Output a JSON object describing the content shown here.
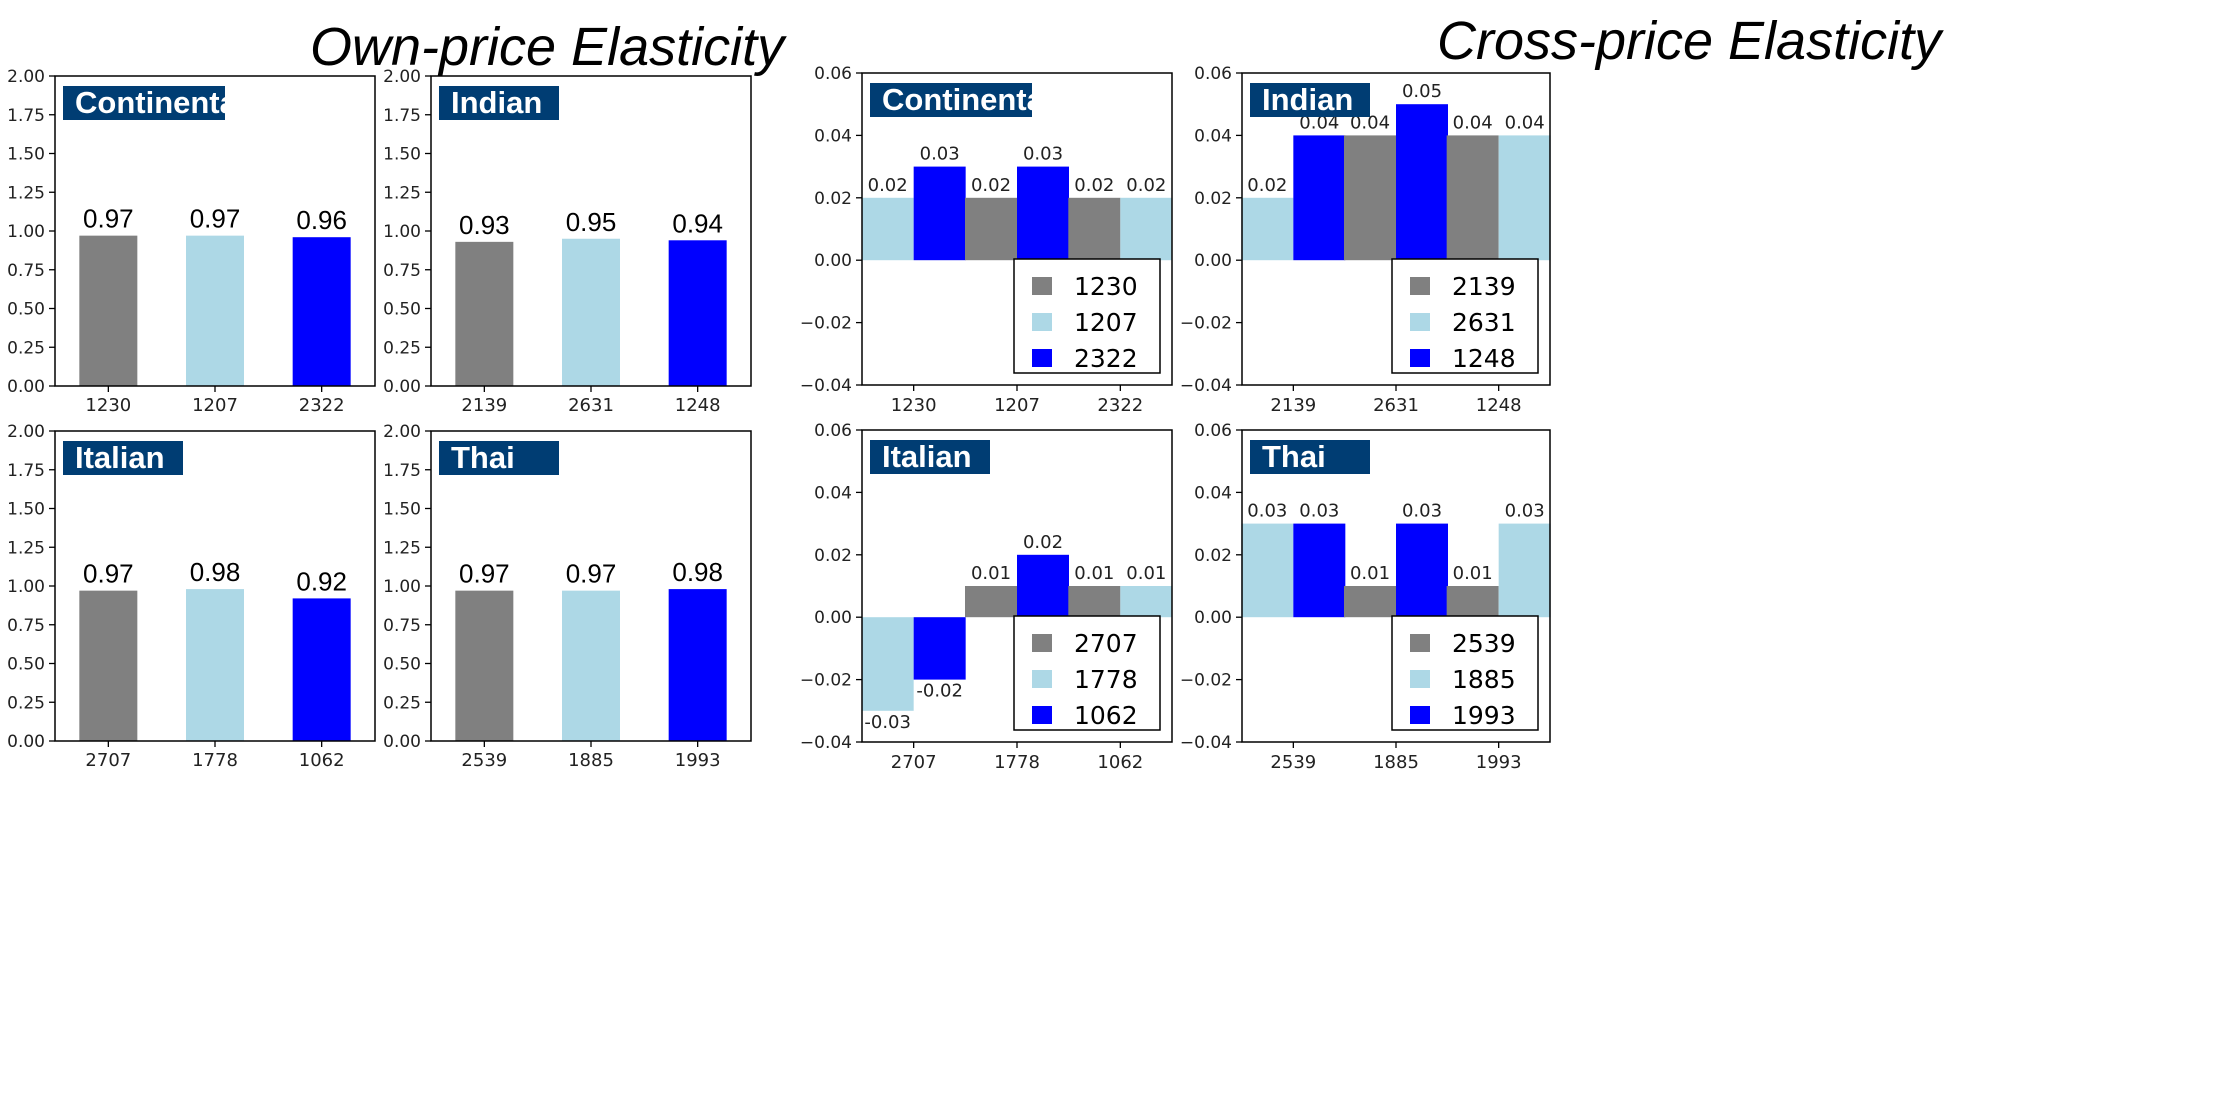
{
  "titles": {
    "own_price": "Own-price Elasticity",
    "cross_price": "Cross-price Elasticity"
  },
  "colors": {
    "gray": "#808080",
    "light_blue": "#add8e6",
    "blue": "#0000ff",
    "badge": "#003d73",
    "axis": "#000000"
  },
  "chart_data": [
    {
      "group": "own-price",
      "cuisine": "Continental",
      "type": "bar",
      "categories": [
        "1230",
        "1207",
        "2322"
      ],
      "values": [
        0.97,
        0.97,
        0.96
      ],
      "labels": [
        "0.97",
        "0.97",
        "0.96"
      ],
      "ylim": [
        0,
        2.0
      ],
      "yticks": [
        "0.00",
        "0.25",
        "0.50",
        "0.75",
        "1.00",
        "1.25",
        "1.50",
        "1.75",
        "2.00"
      ]
    },
    {
      "group": "own-price",
      "cuisine": "Indian",
      "type": "bar",
      "categories": [
        "2139",
        "2631",
        "1248"
      ],
      "values": [
        0.93,
        0.95,
        0.94
      ],
      "labels": [
        "0.93",
        "0.95",
        "0.94"
      ],
      "ylim": [
        0,
        2.0
      ],
      "yticks": [
        "0.00",
        "0.25",
        "0.50",
        "0.75",
        "1.00",
        "1.25",
        "1.50",
        "1.75",
        "2.00"
      ]
    },
    {
      "group": "own-price",
      "cuisine": "Italian",
      "type": "bar",
      "categories": [
        "2707",
        "1778",
        "1062"
      ],
      "values": [
        0.97,
        0.98,
        0.92
      ],
      "labels": [
        "0.97",
        "0.98",
        "0.92"
      ],
      "ylim": [
        0,
        2.0
      ],
      "yticks": [
        "0.00",
        "0.25",
        "0.50",
        "0.75",
        "1.00",
        "1.25",
        "1.50",
        "1.75",
        "2.00"
      ]
    },
    {
      "group": "own-price",
      "cuisine": "Thai",
      "type": "bar",
      "categories": [
        "2539",
        "1885",
        "1993"
      ],
      "values": [
        0.97,
        0.97,
        0.98
      ],
      "labels": [
        "0.97",
        "0.97",
        "0.98"
      ],
      "ylim": [
        0,
        2.0
      ],
      "yticks": [
        "0.00",
        "0.25",
        "0.50",
        "0.75",
        "1.00",
        "1.25",
        "1.50",
        "1.75",
        "2.00"
      ]
    },
    {
      "group": "cross-price",
      "cuisine": "Continental",
      "type": "bar",
      "categories": [
        "1230",
        "1207",
        "2322"
      ],
      "ylim": [
        -0.04,
        0.06
      ],
      "yticks": [
        "−0.04",
        "−0.02",
        "0.00",
        "0.02",
        "0.04",
        "0.06"
      ],
      "legend_position": "lower-right",
      "series": [
        {
          "name": "1230",
          "values": [
            null,
            0.02,
            0.02
          ],
          "labels": [
            "",
            "0.02",
            "0.02"
          ]
        },
        {
          "name": "1207",
          "values": [
            0.02,
            null,
            0.02
          ],
          "labels": [
            "0.02",
            "",
            "0.02"
          ]
        },
        {
          "name": "2322",
          "values": [
            0.03,
            0.03,
            null
          ],
          "labels": [
            "0.03",
            "0.03",
            ""
          ]
        }
      ]
    },
    {
      "group": "cross-price",
      "cuisine": "Indian",
      "type": "bar",
      "categories": [
        "2139",
        "2631",
        "1248"
      ],
      "ylim": [
        -0.04,
        0.06
      ],
      "yticks": [
        "−0.04",
        "−0.02",
        "0.00",
        "0.02",
        "0.04",
        "0.06"
      ],
      "legend_position": "lower-right",
      "series": [
        {
          "name": "2139",
          "values": [
            null,
            0.04,
            0.04
          ],
          "labels": [
            "",
            "0.04",
            "0.04"
          ]
        },
        {
          "name": "2631",
          "values": [
            0.02,
            null,
            0.04
          ],
          "labels": [
            "0.02",
            "",
            "0.04"
          ]
        },
        {
          "name": "1248",
          "values": [
            0.04,
            0.05,
            null
          ],
          "labels": [
            "0.04",
            "0.05",
            ""
          ]
        }
      ]
    },
    {
      "group": "cross-price",
      "cuisine": "Italian",
      "type": "bar",
      "categories": [
        "2707",
        "1778",
        "1062"
      ],
      "ylim": [
        -0.04,
        0.06
      ],
      "yticks": [
        "−0.04",
        "−0.02",
        "0.00",
        "0.02",
        "0.04",
        "0.06"
      ],
      "legend_position": "lower-right",
      "series": [
        {
          "name": "2707",
          "values": [
            null,
            0.01,
            0.01
          ],
          "labels": [
            "",
            "0.01",
            "0.01"
          ]
        },
        {
          "name": "1778",
          "values": [
            -0.03,
            null,
            0.01
          ],
          "labels": [
            "-0.03",
            "",
            "0.01"
          ]
        },
        {
          "name": "1062",
          "values": [
            -0.02,
            0.02,
            null
          ],
          "labels": [
            "-0.02",
            "0.02",
            ""
          ]
        }
      ]
    },
    {
      "group": "cross-price",
      "cuisine": "Thai",
      "type": "bar",
      "categories": [
        "2539",
        "1885",
        "1993"
      ],
      "ylim": [
        -0.04,
        0.06
      ],
      "yticks": [
        "−0.04",
        "−0.02",
        "0.00",
        "0.02",
        "0.04",
        "0.06"
      ],
      "legend_position": "lower-right",
      "series": [
        {
          "name": "2539",
          "values": [
            null,
            0.01,
            0.01
          ],
          "labels": [
            "",
            "0.01",
            "0.01"
          ]
        },
        {
          "name": "1885",
          "values": [
            0.03,
            null,
            0.03
          ],
          "labels": [
            "0.03",
            "",
            "0.03"
          ]
        },
        {
          "name": "1993",
          "values": [
            0.03,
            0.03,
            null
          ],
          "labels": [
            "0.03",
            "0.03",
            ""
          ]
        }
      ]
    }
  ]
}
